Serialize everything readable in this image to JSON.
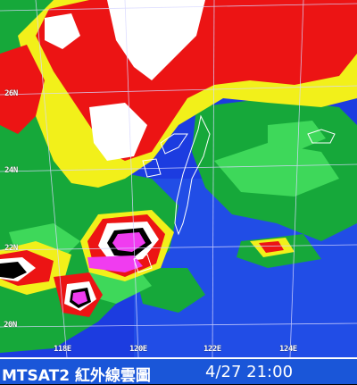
{
  "map": {
    "latitude_labels": [
      "26N",
      "24N",
      "22N",
      "20N"
    ],
    "longitude_labels": [
      "118E",
      "120E",
      "122E",
      "124E"
    ],
    "colors": {
      "ocean_blue": "#1c3ce0",
      "ocean_light": "#2a6cf0",
      "green_low": "#16a83a",
      "green_mid": "#3ed85a",
      "yellow": "#f2f01a",
      "red": "#ec1414",
      "white": "#ffffff",
      "magenta": "#f03cf0",
      "black": "#000000",
      "grid": "#d8d8ff"
    }
  },
  "caption": {
    "title": "MTSAT2 紅外線雲圖",
    "timestamp": "4/27 21:00"
  }
}
